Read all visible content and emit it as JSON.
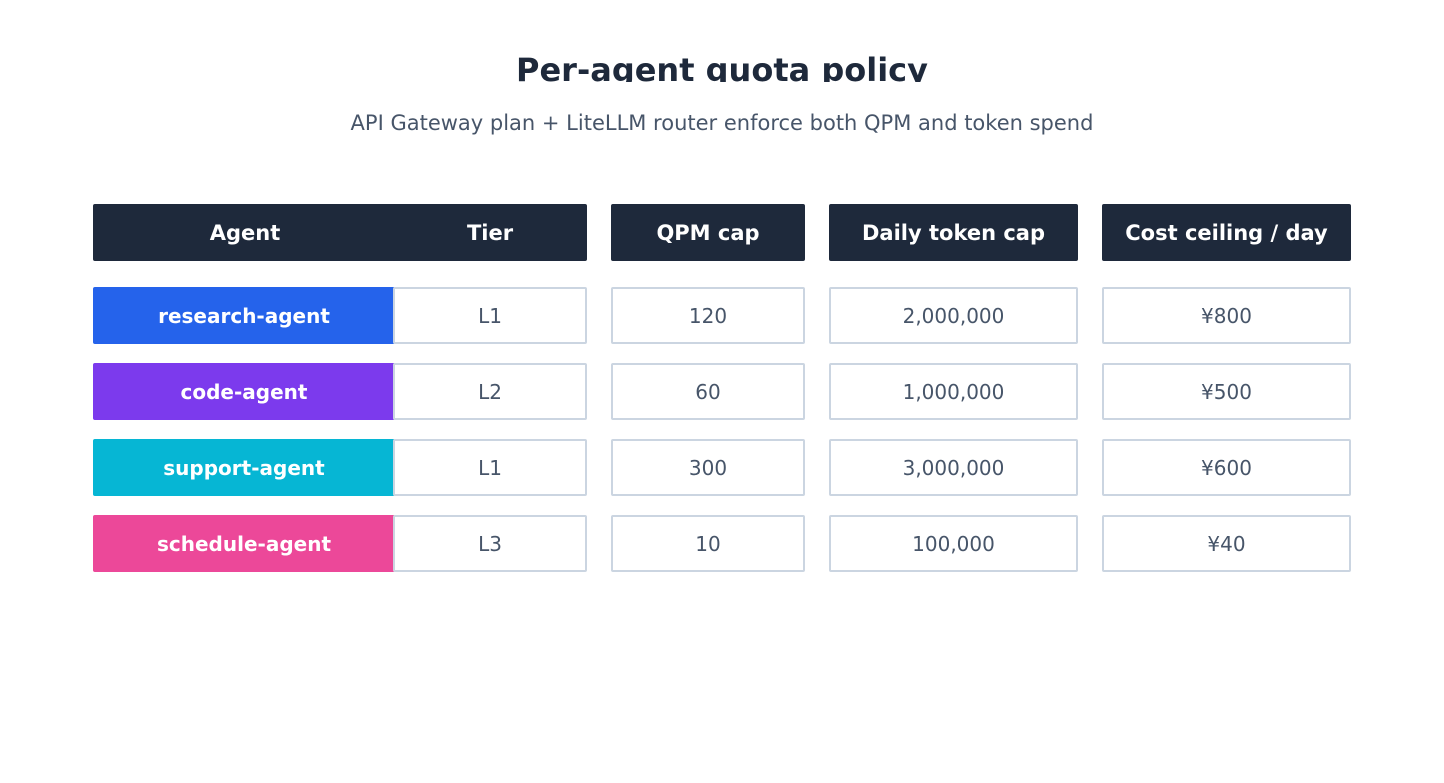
{
  "title": "Per-agent quota policy",
  "subtitle": "API Gateway plan + LiteLLM router enforce both QPM and token spend",
  "headers": {
    "agent": "Agent",
    "tier": "Tier",
    "qpm": "QPM cap",
    "tokens": "Daily token cap",
    "cost": "Cost ceiling / day"
  },
  "rows": [
    {
      "agent": "research-agent",
      "color": "#2563eb",
      "tier": "L1",
      "qpm": "120",
      "tokens": "2,000,000",
      "cost": "¥800"
    },
    {
      "agent": "code-agent",
      "color": "#7c3aed",
      "tier": "L2",
      "qpm": "60",
      "tokens": "1,000,000",
      "cost": "¥500"
    },
    {
      "agent": "support-agent",
      "color": "#06b6d4",
      "tier": "L1",
      "qpm": "300",
      "tokens": "3,000,000",
      "cost": "¥600"
    },
    {
      "agent": "schedule-agent",
      "color": "#ec4899",
      "tier": "L3",
      "qpm": "10",
      "tokens": "100,000",
      "cost": "¥40"
    }
  ]
}
